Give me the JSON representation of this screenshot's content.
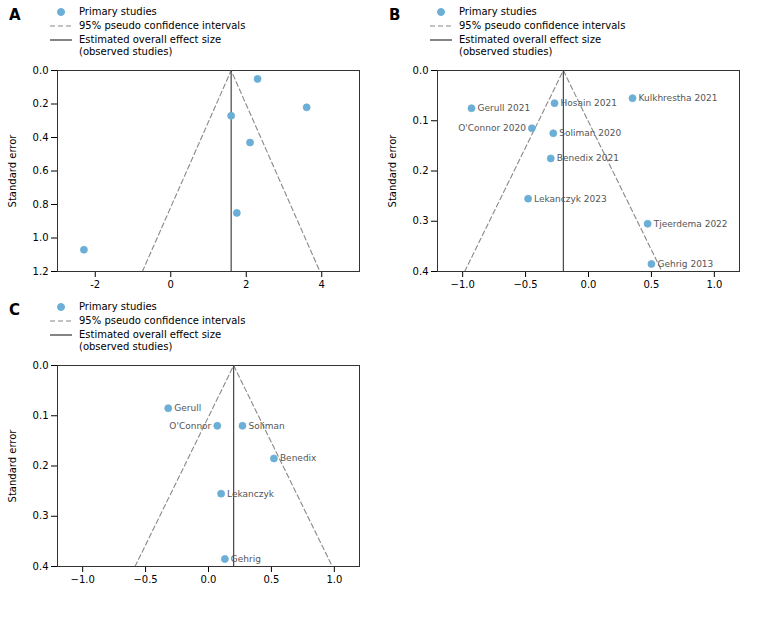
{
  "chart_data": [
    {
      "type": "scatter",
      "title": "A",
      "y_label": "Standard error",
      "xlim": [
        -3.0,
        5.0
      ],
      "xticks": [
        -2,
        0,
        2,
        4
      ],
      "ylim": [
        1.2,
        0
      ],
      "yticks": [
        {
          "value": 0,
          "label": "0.0"
        },
        {
          "value": 0.2,
          "label": "0.2"
        },
        {
          "value": 0.4,
          "label": "0.4"
        },
        {
          "value": 0.6,
          "label": "0.6"
        },
        {
          "value": 0.8,
          "label": "0.8"
        },
        {
          "value": 1.0,
          "label": "1.0"
        },
        {
          "value": 1.2,
          "label": "1.2"
        }
      ],
      "grid": false,
      "legend": "top",
      "series": [
        {
          "name": "Primary studies",
          "type": "scatter",
          "marker": "circle",
          "color": "#6baed6",
          "x": [
            1.6,
            2.1,
            1.75,
            3.6,
            2.3,
            -2.3
          ],
          "values": [
            0.27,
            0.43,
            0.85,
            0.22,
            0.05,
            1.07
          ]
        },
        {
          "name": "95% pseudo confidence intervals",
          "type": "line",
          "line_style": "dashed",
          "color": "#888888",
          "x": [
            -0.752,
            1.6,
            3.952
          ],
          "values": [
            1.2,
            0,
            1.2
          ]
        },
        {
          "name": "Estimated overall effect size\n(observed studies)",
          "type": "line",
          "line_style": "solid",
          "color": "#333333",
          "x": [
            1.6,
            1.6
          ],
          "values": [
            0,
            1.2
          ]
        }
      ]
    },
    {
      "type": "scatter",
      "title": "B",
      "y_label": "Standard error",
      "xlim": [
        -1.2,
        1.2
      ],
      "xticks": [
        {
          "value": -1.0,
          "label": "−1.0"
        },
        {
          "value": -0.5,
          "label": "−0.5"
        },
        {
          "value": 0.0,
          "label": "0.0"
        },
        {
          "value": 0.5,
          "label": "0.5"
        },
        {
          "value": 1.0,
          "label": "1.0"
        }
      ],
      "ylim": [
        0.4,
        0
      ],
      "yticks": [
        {
          "value": 0,
          "label": "0.0"
        },
        {
          "value": 0.1,
          "label": "0.1"
        },
        {
          "value": 0.2,
          "label": "0.2"
        },
        {
          "value": 0.3,
          "label": "0.3"
        },
        {
          "value": 0.4,
          "label": "0.4"
        }
      ],
      "grid": false,
      "legend": "top",
      "series": [
        {
          "name": "Primary studies",
          "type": "scatter",
          "marker": "circle",
          "color": "#6baed6",
          "x": [
            -0.93,
            -0.27,
            0.35,
            -0.45,
            -0.28,
            -0.3,
            -0.48,
            0.47,
            0.5
          ],
          "values": [
            0.075,
            0.065,
            0.055,
            0.115,
            0.125,
            0.175,
            0.255,
            0.305,
            0.385
          ],
          "labels": [
            "Gerull 2021",
            "Hosain 2021",
            "Kulkhrestha 2021",
            "O'Connor 2020",
            "Soliman 2020",
            "Benedix 2021",
            "Lekanczyk 2023",
            "Tjeerdema 2022",
            "Gehrig 2013"
          ]
        },
        {
          "name": "95% pseudo confidence intervals",
          "type": "line",
          "line_style": "dashed",
          "color": "#888888",
          "x": [
            -0.984,
            -0.2,
            0.584
          ],
          "values": [
            0.4,
            0,
            0.4
          ]
        },
        {
          "name": "Estimated overall effect size\n(observed studies)",
          "type": "line",
          "line_style": "solid",
          "color": "#333333",
          "x": [
            -0.2,
            -0.2
          ],
          "values": [
            0,
            0.4
          ]
        }
      ]
    },
    {
      "type": "scatter",
      "title": "C",
      "y_label": "Standard error",
      "xlim": [
        -1.2,
        1.2
      ],
      "xticks": [
        {
          "value": -1.0,
          "label": "−1.0"
        },
        {
          "value": -0.5,
          "label": "−0.5"
        },
        {
          "value": 0.0,
          "label": "0.0"
        },
        {
          "value": 0.5,
          "label": "0.5"
        },
        {
          "value": 1.0,
          "label": "1.0"
        }
      ],
      "ylim": [
        0.4,
        0
      ],
      "yticks": [
        {
          "value": 0,
          "label": "0.0"
        },
        {
          "value": 0.1,
          "label": "0.1"
        },
        {
          "value": 0.2,
          "label": "0.2"
        },
        {
          "value": 0.3,
          "label": "0.3"
        },
        {
          "value": 0.4,
          "label": "0.4"
        }
      ],
      "grid": false,
      "legend": "top",
      "series": [
        {
          "name": "Primary studies",
          "type": "scatter",
          "marker": "circle",
          "color": "#6baed6",
          "x": [
            -0.32,
            0.07,
            0.27,
            0.52,
            0.1,
            0.13
          ],
          "values": [
            0.085,
            0.12,
            0.12,
            0.185,
            0.255,
            0.385
          ],
          "labels": [
            "Gerull",
            "O'Connor",
            "Soliman",
            "Benedix",
            "Lekanczyk",
            "Gehrig"
          ]
        },
        {
          "name": "95% pseudo confidence intervals",
          "type": "line",
          "line_style": "dashed",
          "color": "#888888",
          "x": [
            -0.584,
            0.2,
            0.984
          ],
          "values": [
            0.4,
            0,
            0.4
          ]
        },
        {
          "name": "Estimated overall effect size\n(observed studies)",
          "type": "line",
          "line_style": "solid",
          "color": "#333333",
          "x": [
            0.2,
            0.2
          ],
          "values": [
            0,
            0.4
          ]
        }
      ]
    }
  ]
}
